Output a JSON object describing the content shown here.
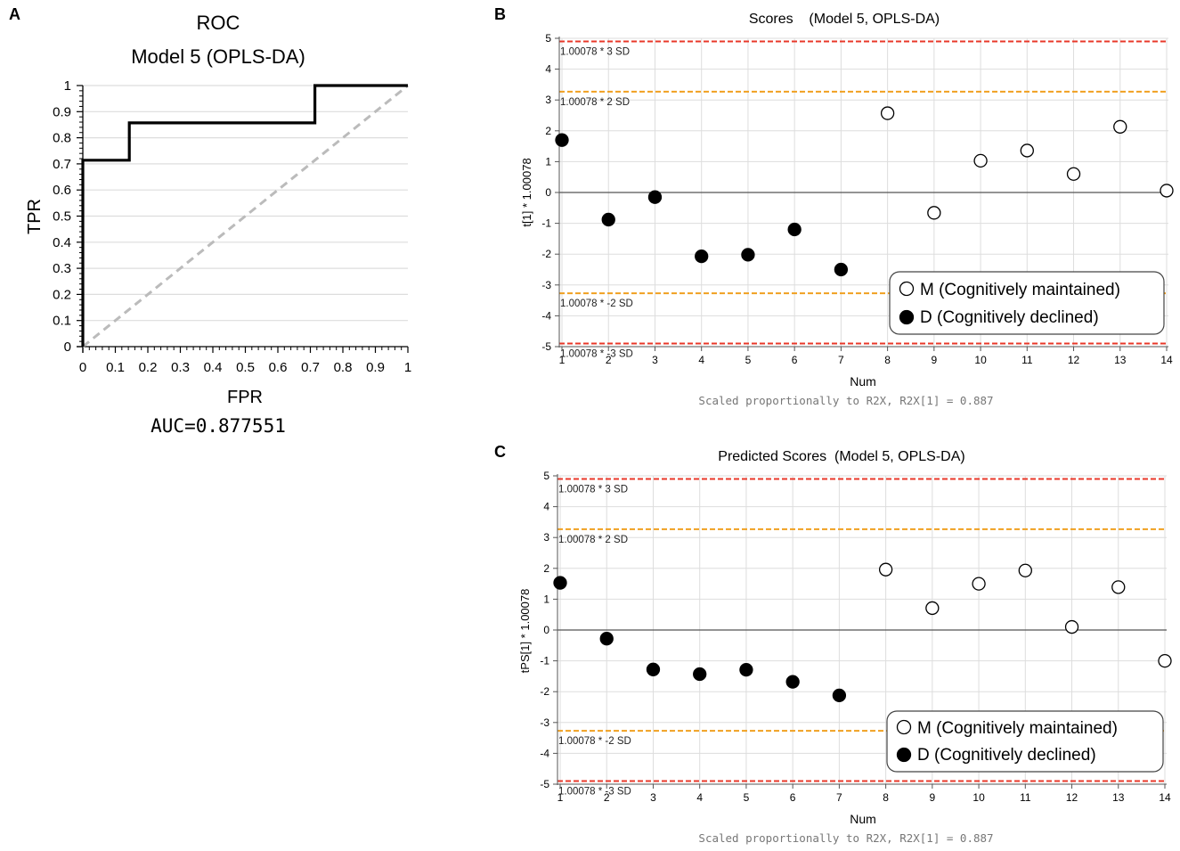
{
  "panels": [
    {
      "letter": "A",
      "role": "roc"
    },
    {
      "letter": "B",
      "role": "scores"
    },
    {
      "letter": "C",
      "role": "predicted"
    }
  ],
  "chart_data": [
    {
      "type": "line",
      "panel": "A",
      "title_line1": "ROC",
      "title_line2": "Model 5 (OPLS-DA)",
      "xlabel": "FPR",
      "ylabel": "TPR",
      "xlim": [
        0,
        1
      ],
      "ylim": [
        0,
        1
      ],
      "xticks": [
        "0",
        "0.1",
        "0.2",
        "0.3",
        "0.4",
        "0.5",
        "0.6",
        "0.7",
        "0.8",
        "0.9",
        "1"
      ],
      "yticks": [
        "0",
        "0.1",
        "0.2",
        "0.3",
        "0.4",
        "0.5",
        "0.6",
        "0.7",
        "0.8",
        "0.9",
        "1"
      ],
      "grid": "horizontal",
      "series": [
        {
          "name": "ROC curve",
          "x": [
            0,
            0,
            0.143,
            0.143,
            0.714,
            0.714,
            1
          ],
          "y": [
            0,
            0.714,
            0.714,
            0.857,
            0.857,
            1,
            1
          ]
        },
        {
          "name": "Chance",
          "x": [
            0,
            1
          ],
          "y": [
            0,
            1
          ]
        }
      ],
      "auc_text": "AUC=0.877551",
      "colors": {
        "curve": "#000000",
        "diagonal": "#bbbbbb",
        "grid": "#dddddd"
      }
    },
    {
      "type": "scatter",
      "panel": "B",
      "title": "Scores    (Model 5, OPLS-DA)",
      "xlabel": "Num",
      "ylabel": "t[1] * 1.00078",
      "footnote": "Scaled proportionally to R2X, R2X[1] = 0.887",
      "xlim": [
        1,
        14
      ],
      "ylim": [
        -5,
        5
      ],
      "xticks": [
        "1",
        "2",
        "3",
        "4",
        "5",
        "6",
        "7",
        "8",
        "9",
        "10",
        "11",
        "12",
        "13",
        "14"
      ],
      "yticks": [
        "-5",
        "-4",
        "-3",
        "-2",
        "-1",
        "0",
        "1",
        "2",
        "3",
        "4",
        "5"
      ],
      "limits": [
        {
          "value": 4.9,
          "label": "1.00078 * 3 SD",
          "color": "#e8382a"
        },
        {
          "value": 3.27,
          "label": "1.00078 * 2 SD",
          "color": "#f0a020"
        },
        {
          "value": -3.27,
          "label": "1.00078 * -2 SD",
          "color": "#f0a020"
        },
        {
          "value": -4.9,
          "label": "1.00078 * -3 SD",
          "color": "#e8382a"
        }
      ],
      "series": [
        {
          "name": "D (Cognitively declined)",
          "marker": "filled",
          "x": [
            1,
            2,
            3,
            4,
            5,
            6,
            7
          ],
          "y": [
            1.7,
            -0.88,
            -0.15,
            -2.07,
            -2.02,
            -1.2,
            -2.5
          ]
        },
        {
          "name": "M (Cognitively maintained)",
          "marker": "open",
          "x": [
            8,
            9,
            10,
            11,
            12,
            13,
            14
          ],
          "y": [
            2.57,
            -0.66,
            1.03,
            1.36,
            0.6,
            2.13,
            0.06
          ]
        }
      ],
      "legend": [
        {
          "marker": "open",
          "label": "M (Cognitively maintained)"
        },
        {
          "marker": "filled",
          "label": "D (Cognitively declined)"
        }
      ],
      "legend_position": "bottom-right"
    },
    {
      "type": "scatter",
      "panel": "C",
      "title": "Predicted Scores  (Model 5, OPLS-DA)",
      "xlabel": "Num",
      "ylabel": "tPS[1] * 1.00078",
      "footnote": "Scaled proportionally to R2X, R2X[1] = 0.887",
      "xlim": [
        1,
        14
      ],
      "ylim": [
        -5,
        5
      ],
      "xticks": [
        "1",
        "2",
        "3",
        "4",
        "5",
        "6",
        "7",
        "8",
        "9",
        "10",
        "11",
        "12",
        "13",
        "14"
      ],
      "yticks": [
        "-5",
        "-4",
        "-3",
        "-2",
        "-1",
        "0",
        "1",
        "2",
        "3",
        "4",
        "5"
      ],
      "limits": [
        {
          "value": 4.9,
          "label": "1.00078 * 3 SD",
          "color": "#e8382a"
        },
        {
          "value": 3.27,
          "label": "1.00078 * 2 SD",
          "color": "#f0a020"
        },
        {
          "value": -3.27,
          "label": "1.00078 * -2 SD",
          "color": "#f0a020"
        },
        {
          "value": -4.9,
          "label": "1.00078 * -3 SD",
          "color": "#e8382a"
        }
      ],
      "series": [
        {
          "name": "D (Cognitively declined)",
          "marker": "filled",
          "x": [
            1,
            2,
            3,
            4,
            5,
            6,
            7
          ],
          "y": [
            1.53,
            -0.28,
            -1.28,
            -1.43,
            -1.29,
            -1.68,
            -2.12
          ]
        },
        {
          "name": "M (Cognitively maintained)",
          "marker": "open",
          "x": [
            8,
            9,
            10,
            11,
            12,
            13,
            14
          ],
          "y": [
            1.96,
            0.71,
            1.5,
            1.93,
            0.1,
            1.39,
            -1.0
          ]
        }
      ],
      "legend": [
        {
          "marker": "open",
          "label": "M (Cognitively maintained)"
        },
        {
          "marker": "filled",
          "label": "D (Cognitively declined)"
        }
      ],
      "legend_position": "bottom-right"
    }
  ]
}
